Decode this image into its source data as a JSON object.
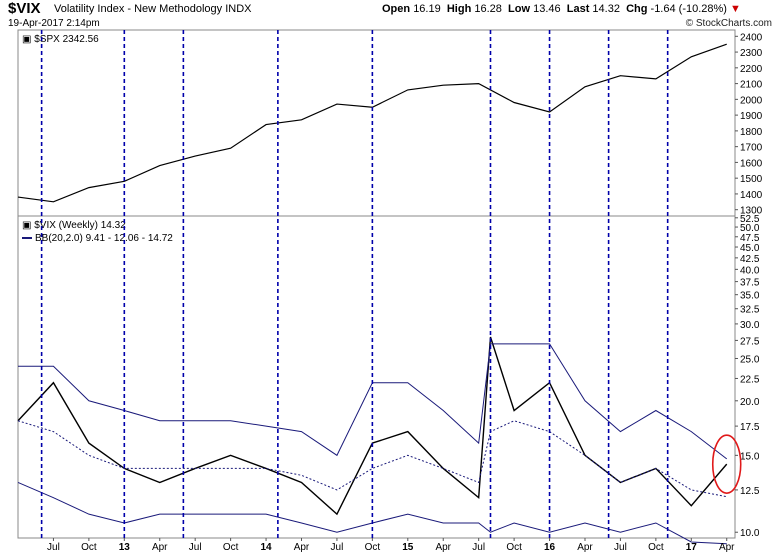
{
  "header": {
    "symbol": "$VIX",
    "name": "Volatility Index - New Methodology",
    "exchange": "INDX",
    "datetime": "19-Apr-2017 2:14pm",
    "open_label": "Open",
    "open": "16.19",
    "high_label": "High",
    "high": "16.28",
    "low_label": "Low",
    "low": "13.46",
    "last_label": "Last",
    "last": "14.32",
    "chg_label": "Chg",
    "chg": "-1.64 (-10.28%)",
    "brand": "© StockCharts.com"
  },
  "chart_data": [
    {
      "type": "line",
      "legend": "$SPX 2342.56",
      "y_ticks": [
        1300,
        1400,
        1500,
        1600,
        1700,
        1800,
        1900,
        2000,
        2100,
        2200,
        2300,
        2400
      ],
      "ylim": [
        1260,
        2440
      ],
      "x": [
        "Apr 2012",
        "Jul 2012",
        "Oct 2012",
        "Jan 2013",
        "Apr 2013",
        "Jul 2013",
        "Oct 2013",
        "Jan 2014",
        "Apr 2014",
        "Jul 2014",
        "Oct 2014",
        "Jan 2015",
        "Apr 2015",
        "Jul 2015",
        "Oct 2015",
        "Jan 2016",
        "Apr 2016",
        "Jul 2016",
        "Oct 2016",
        "Jan 2017",
        "Apr 2017"
      ],
      "series": [
        {
          "name": "$SPX",
          "values": [
            1380,
            1350,
            1440,
            1480,
            1580,
            1640,
            1690,
            1840,
            1870,
            1970,
            1950,
            2060,
            2090,
            2100,
            1980,
            1920,
            2080,
            2150,
            2130,
            2270,
            2350
          ]
        }
      ]
    },
    {
      "type": "line",
      "legends": [
        "$VIX (Weekly) 14.32",
        "BB(20,2.0) 9.41 - 12.06 - 14.72"
      ],
      "y_ticks": [
        10.0,
        12.5,
        15.0,
        17.5,
        20.0,
        22.5,
        25.0,
        27.5,
        30.0,
        32.5,
        35.0,
        37.5,
        40.0,
        42.5,
        45.0,
        47.5,
        50.0,
        52.5
      ],
      "scale": "log",
      "ylim": [
        9.7,
        53
      ],
      "x_tick_labels": [
        "Jul",
        "Oct",
        "13",
        "Apr",
        "Jul",
        "Oct",
        "14",
        "Apr",
        "Jul",
        "Oct",
        "15",
        "Apr",
        "Jul",
        "Oct",
        "16",
        "Apr",
        "Jul",
        "Oct",
        "17",
        "Apr"
      ],
      "x": [
        "Apr 2012",
        "Jul 2012",
        "Oct 2012",
        "Jan 2013",
        "Apr 2013",
        "Jul 2013",
        "Oct 2013",
        "Jan 2014",
        "Apr 2014",
        "Jul 2014",
        "Oct 2014",
        "Jan 2015",
        "Apr 2015",
        "Jul 2015",
        "Aug 2015",
        "Oct 2015",
        "Jan 2016",
        "Apr 2016",
        "Jul 2016",
        "Oct 2016",
        "Jan 2017",
        "Apr 2017"
      ],
      "series": [
        {
          "name": "$VIX",
          "values": [
            18,
            22,
            16,
            14,
            13,
            14,
            15,
            14,
            13,
            11,
            16,
            17,
            14,
            12,
            28,
            19,
            22,
            15,
            13,
            14,
            11.5,
            14.32
          ]
        },
        {
          "name": "BB upper",
          "values": [
            24,
            24,
            20,
            19,
            18,
            18,
            18,
            17.5,
            17,
            15,
            22,
            22,
            19,
            16,
            27,
            27,
            27,
            20,
            17,
            19,
            17,
            14.72
          ]
        },
        {
          "name": "BB middle",
          "values": [
            18,
            17,
            15,
            14,
            14,
            14,
            14,
            14,
            13.5,
            12.5,
            14,
            15,
            14,
            13,
            17,
            18,
            17,
            15,
            13,
            14,
            12.5,
            12.06
          ]
        },
        {
          "name": "BB lower",
          "values": [
            13,
            12,
            11,
            10.5,
            11,
            11,
            11,
            11,
            10.5,
            10,
            10.5,
            11,
            10.5,
            10.5,
            10,
            10.5,
            10,
            10.5,
            10,
            10.5,
            9.5,
            9.41
          ]
        }
      ],
      "vertical_markers": [
        "Jun 2012",
        "Jan 2013",
        "Jun 2013",
        "Feb 2014",
        "Oct 2014",
        "Aug 2015",
        "Jan 2016",
        "Jun 2016",
        "Nov 2016"
      ],
      "annotation": "red-circle-around-latest-vix-bar"
    }
  ],
  "colors": {
    "marker": "#0000aa",
    "bands": "#1a1a7a",
    "frame": "#888888",
    "annotation": "#e0191a",
    "price": "#000000"
  }
}
